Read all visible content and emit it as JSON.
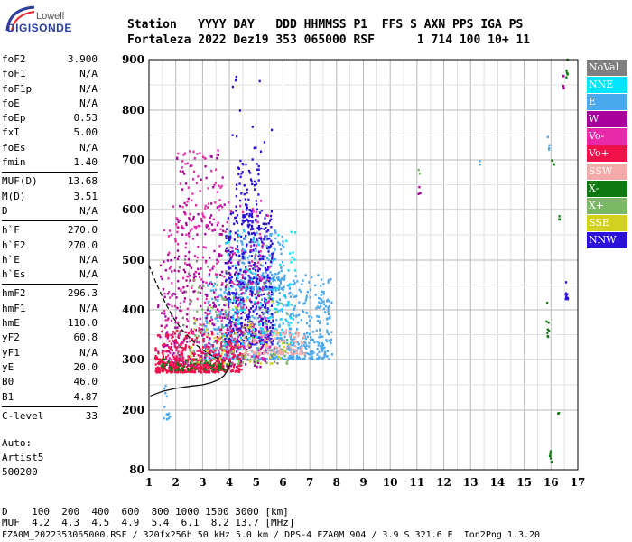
{
  "logo": {
    "top": "Lowell",
    "main": "DIGISONDE"
  },
  "header": {
    "line1": "Station   YYYY DAY   DDD HHMMSS P1  FFS S AXN PPS IGA PS",
    "line2": "Fortaleza 2022 Dez19 353 065000 RSF      1 714 100 10+ 11"
  },
  "params_groups": [
    [
      {
        "k": "foF2",
        "v": "3.900"
      },
      {
        "k": "foF1",
        "v": "N/A"
      },
      {
        "k": "foF1p",
        "v": "N/A"
      },
      {
        "k": "foE",
        "v": "N/A"
      },
      {
        "k": "foEp",
        "v": "0.53"
      },
      {
        "k": "fxI",
        "v": "5.00"
      },
      {
        "k": "foEs",
        "v": "N/A"
      },
      {
        "k": "fmin",
        "v": "1.40"
      }
    ],
    [
      {
        "k": "MUF(D)",
        "v": "13.68"
      },
      {
        "k": "M(D)",
        "v": "3.51"
      },
      {
        "k": "D",
        "v": "N/A"
      }
    ],
    [
      {
        "k": "h`F",
        "v": "270.0"
      },
      {
        "k": "h`F2",
        "v": "270.0"
      },
      {
        "k": "h`E",
        "v": "N/A"
      },
      {
        "k": "h`Es",
        "v": "N/A"
      }
    ],
    [
      {
        "k": "hmF2",
        "v": "296.3"
      },
      {
        "k": "hmF1",
        "v": "N/A"
      },
      {
        "k": "hmE",
        "v": "110.0"
      },
      {
        "k": "yF2",
        "v": "60.8"
      },
      {
        "k": "yF1",
        "v": "N/A"
      },
      {
        "k": "yE",
        "v": "20.0"
      },
      {
        "k": "B0",
        "v": "46.0"
      },
      {
        "k": "B1",
        "v": "4.87"
      }
    ],
    [
      {
        "k": "C-level",
        "v": "33"
      }
    ]
  ],
  "auto": {
    "l1": "Auto:",
    "l2": "Artist5",
    "l3": "500200"
  },
  "legend": [
    {
      "label": "NoVal",
      "color": "#808080"
    },
    {
      "label": "NNE",
      "color": "#00e5ff"
    },
    {
      "label": "E",
      "color": "#4aa8ef"
    },
    {
      "label": "W",
      "color": "#a8009a"
    },
    {
      "label": "Vo-",
      "color": "#e82aa8"
    },
    {
      "label": "Vo+",
      "color": "#f0104a"
    },
    {
      "label": "SSW",
      "color": "#f5aaaa"
    },
    {
      "label": "X-",
      "color": "#0c7a10"
    },
    {
      "label": "X+",
      "color": "#7ab864"
    },
    {
      "label": "SSE",
      "color": "#d2d21e"
    },
    {
      "label": "NNW",
      "color": "#2a10d8"
    }
  ],
  "footer": {
    "line1": "D    100  200  400  600  800 1000 1500 3000 [km]",
    "line2": "MUF  4.2  4.3  4.5  4.9  5.4  6.1  8.2 13.7 [MHz]",
    "line3": "FZA0M_2022353065000.RSF / 320fx256h 50 kHz 5.0 km / DPS-4 FZA0M 904 / 3.9 S 321.6 E  Ion2Png 1.3.20"
  },
  "chart_data": {
    "type": "scatter",
    "x_ticks": [
      1,
      2,
      3,
      4,
      5,
      6,
      7,
      8,
      9,
      10,
      11,
      12,
      13,
      14,
      15,
      16,
      17
    ],
    "y_ticks": [
      80,
      200,
      300,
      400,
      500,
      600,
      700,
      800,
      900
    ],
    "xlim": [
      1,
      17
    ],
    "ylim": [
      80,
      900
    ],
    "y_scale": "reciprocal",
    "grid": true,
    "trace_profile": [
      [
        1.05,
        228
      ],
      [
        1.5,
        237
      ],
      [
        2,
        243
      ],
      [
        2.5,
        247
      ],
      [
        3,
        250
      ],
      [
        3.3,
        254
      ],
      [
        3.6,
        260
      ],
      [
        3.8,
        268
      ],
      [
        3.95,
        280
      ],
      [
        4.05,
        296
      ]
    ],
    "trace_dashed": [
      [
        1.0,
        490
      ],
      [
        1.3,
        450
      ],
      [
        1.6,
        415
      ],
      [
        1.9,
        385
      ],
      [
        2.2,
        362
      ],
      [
        2.5,
        345
      ],
      [
        2.8,
        328
      ],
      [
        3.1,
        316
      ],
      [
        3.4,
        306
      ],
      [
        3.7,
        300
      ],
      [
        4.0,
        296
      ]
    ],
    "clusters": [
      {
        "color": "#4aa8ef",
        "x": [
          3.0,
          7.8
        ],
        "y": [
          300,
          470
        ],
        "n": 700
      },
      {
        "color": "#4aa8ef",
        "x": [
          4.2,
          6.0
        ],
        "y": [
          440,
          560
        ],
        "n": 180
      },
      {
        "color": "#2a10d8",
        "x": [
          3.8,
          5.6
        ],
        "y": [
          330,
          600
        ],
        "n": 420
      },
      {
        "color": "#2a10d8",
        "x": [
          4.2,
          5.1
        ],
        "y": [
          560,
          700
        ],
        "n": 80
      },
      {
        "color": "#a8009a",
        "x": [
          1.3,
          5.3
        ],
        "y": [
          285,
          520
        ],
        "n": 340
      },
      {
        "color": "#e82aa8",
        "x": [
          1.5,
          5.5
        ],
        "y": [
          300,
          620
        ],
        "n": 260
      },
      {
        "color": "#f0104a",
        "x": [
          1.2,
          4.5
        ],
        "y": [
          275,
          360
        ],
        "n": 320
      },
      {
        "color": "#f0104a",
        "x": [
          1.2,
          3.8
        ],
        "y": [
          274,
          300
        ],
        "n": 200
      },
      {
        "color": "#0c7a10",
        "x": [
          1.4,
          3.9
        ],
        "y": [
          278,
          300
        ],
        "n": 60
      },
      {
        "color": "#f5aaaa",
        "x": [
          4.5,
          6.8
        ],
        "y": [
          310,
          360
        ],
        "n": 140
      },
      {
        "color": "#7ab864",
        "x": [
          2.5,
          6.2
        ],
        "y": [
          290,
          460
        ],
        "n": 90
      },
      {
        "color": "#d2d21e",
        "x": [
          2.5,
          6.2
        ],
        "y": [
          290,
          420
        ],
        "n": 60
      },
      {
        "color": "#00e5ff",
        "x": [
          3.5,
          6.5
        ],
        "y": [
          330,
          560
        ],
        "n": 90
      },
      {
        "color": "#808080",
        "x": [
          2.0,
          5.8
        ],
        "y": [
          290,
          520
        ],
        "n": 50
      },
      {
        "color": "#a8009a",
        "x": [
          2.0,
          3.8
        ],
        "y": [
          550,
          720
        ],
        "n": 60
      },
      {
        "color": "#e82aa8",
        "x": [
          2.0,
          3.8
        ],
        "y": [
          560,
          720
        ],
        "n": 60
      },
      {
        "color": "#2a10d8",
        "x": [
          4.0,
          5.7
        ],
        "y": [
          700,
          870
        ],
        "n": 14
      },
      {
        "color": "#4aa8ef",
        "x": [
          1.5,
          1.75
        ],
        "y": [
          180,
          250
        ],
        "n": 12
      },
      {
        "color": "#2a10d8",
        "x": [
          16.5,
          16.6
        ],
        "y": [
          420,
          480
        ],
        "n": 10
      },
      {
        "color": "#0c7a10",
        "x": [
          15.8,
          15.9
        ],
        "y": [
          345,
          420
        ],
        "n": 8
      },
      {
        "color": "#0c7a10",
        "x": [
          15.9,
          16.0
        ],
        "y": [
          95,
          120
        ],
        "n": 6
      },
      {
        "color": "#0c7a10",
        "x": [
          16.5,
          16.6
        ],
        "y": [
          860,
          900
        ],
        "n": 6
      },
      {
        "color": "#a8009a",
        "x": [
          16.4,
          16.5
        ],
        "y": [
          840,
          870
        ],
        "n": 4
      },
      {
        "color": "#4aa8ef",
        "x": [
          15.8,
          15.9
        ],
        "y": [
          720,
          760
        ],
        "n": 4
      },
      {
        "color": "#0c7a10",
        "x": [
          16.0,
          16.1
        ],
        "y": [
          690,
          700
        ],
        "n": 3
      },
      {
        "color": "#0c7a10",
        "x": [
          16.2,
          16.3
        ],
        "y": [
          580,
          590
        ],
        "n": 3
      },
      {
        "color": "#0c7a10",
        "x": [
          16.2,
          16.3
        ],
        "y": [
          190,
          195
        ],
        "n": 2
      },
      {
        "color": "#7ab864",
        "x": [
          11.0,
          11.1
        ],
        "y": [
          670,
          680
        ],
        "n": 2
      },
      {
        "color": "#a8009a",
        "x": [
          11.0,
          11.1
        ],
        "y": [
          630,
          650
        ],
        "n": 3
      },
      {
        "color": "#4aa8ef",
        "x": [
          13.3,
          13.4
        ],
        "y": [
          690,
          700
        ],
        "n": 2
      }
    ]
  }
}
